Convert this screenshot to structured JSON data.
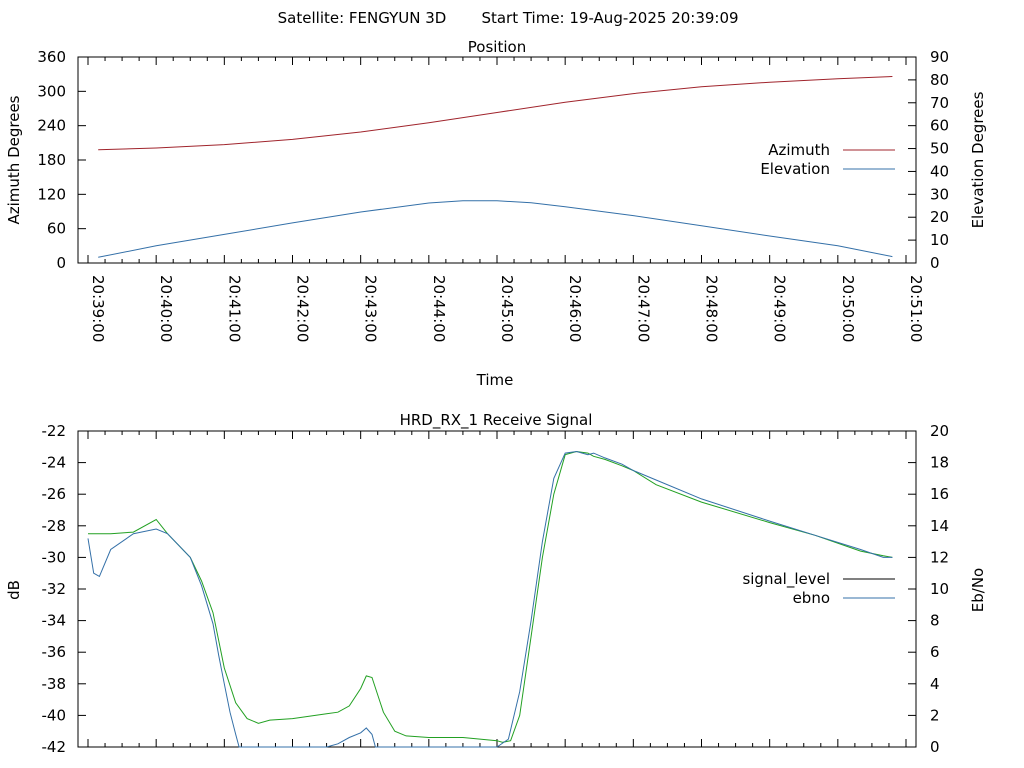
{
  "header": {
    "satellite": "Satellite: FENGYUN 3D",
    "start_time": "Start Time: 19-Aug-2025 20:39:09"
  },
  "chart_data": [
    {
      "type": "line",
      "title": "Position",
      "xlabel": "Time",
      "ylabel": "Azimuth Degrees",
      "y2label": "Elevation Degrees",
      "x_ticks": [
        "20:39:00",
        "20:40:00",
        "20:41:00",
        "20:42:00",
        "20:43:00",
        "20:44:00",
        "20:45:00",
        "20:46:00",
        "20:47:00",
        "20:48:00",
        "20:49:00",
        "20:50:00",
        "20:51:00"
      ],
      "xlim_seconds": [
        0,
        720
      ],
      "ylim": [
        0,
        360
      ],
      "y_ticks": [
        "0",
        "60",
        "120",
        "180",
        "240",
        "300",
        "360"
      ],
      "y2lim": [
        0,
        90
      ],
      "y2_ticks": [
        "0",
        "10",
        "20",
        "30",
        "40",
        "50",
        "60",
        "70",
        "80",
        "90"
      ],
      "legend_position": "right-center",
      "grid": false,
      "series": [
        {
          "name": "Azimuth",
          "axis": "left",
          "color": "#a0242c",
          "x_seconds": [
            9,
            60,
            120,
            180,
            240,
            300,
            360,
            420,
            480,
            540,
            600,
            660,
            708
          ],
          "values": [
            198,
            201,
            207,
            216,
            229,
            245,
            263,
            281,
            296,
            308,
            316,
            322,
            326
          ]
        },
        {
          "name": "Elevation",
          "axis": "right",
          "color": "#3470a8",
          "x_seconds": [
            9,
            60,
            120,
            180,
            240,
            300,
            330,
            360,
            390,
            420,
            480,
            540,
            600,
            660,
            708
          ],
          "values": [
            2.5,
            7.5,
            12.5,
            17.5,
            22.3,
            26.2,
            27.2,
            27.2,
            26.3,
            24.6,
            20.7,
            16.3,
            11.8,
            7.5,
            2.8
          ]
        }
      ]
    },
    {
      "type": "line",
      "title": "HRD_RX_1 Receive Signal",
      "ylabel": "dB",
      "y2label": "Eb/No",
      "xlim_seconds": [
        0,
        720
      ],
      "ylim": [
        -42,
        -22
      ],
      "y_ticks": [
        "-42",
        "-40",
        "-38",
        "-36",
        "-34",
        "-32",
        "-30",
        "-28",
        "-26",
        "-24",
        "-22"
      ],
      "y2lim": [
        0,
        20
      ],
      "y2_ticks": [
        "0",
        "2",
        "4",
        "6",
        "8",
        "10",
        "12",
        "14",
        "16",
        "18",
        "20"
      ],
      "legend_position": "right-center",
      "grid": false,
      "series": [
        {
          "name": "signal_level",
          "axis": "left",
          "legend_color": "#000000",
          "color": "#22a022",
          "x_seconds": [
            0,
            20,
            40,
            60,
            70,
            90,
            100,
            110,
            120,
            130,
            140,
            150,
            160,
            180,
            200,
            210,
            220,
            230,
            240,
            245,
            250,
            260,
            270,
            280,
            300,
            330,
            360,
            365,
            372,
            380,
            390,
            400,
            410,
            420,
            430,
            440,
            445,
            455,
            470,
            480,
            500,
            540,
            600,
            640,
            680,
            700,
            708
          ],
          "values": [
            -28.5,
            -28.5,
            -28.4,
            -27.6,
            -28.5,
            -30.0,
            -31.5,
            -33.5,
            -37.0,
            -39.2,
            -40.2,
            -40.5,
            -40.3,
            -40.2,
            -40.0,
            -39.9,
            -39.8,
            -39.4,
            -38.3,
            -37.5,
            -37.6,
            -39.8,
            -41.0,
            -41.3,
            -41.4,
            -41.4,
            -41.6,
            -41.7,
            -41.6,
            -40.0,
            -35.0,
            -30.0,
            -26.0,
            -23.5,
            -23.3,
            -23.4,
            -23.6,
            -23.8,
            -24.2,
            -24.5,
            -25.4,
            -26.5,
            -27.8,
            -28.6,
            -29.6,
            -29.9,
            -30.0
          ]
        },
        {
          "name": "ebno",
          "axis": "right",
          "legend_color": "#3470a8",
          "color": "#3470a8",
          "x_seconds": [
            0,
            5,
            10,
            20,
            40,
            60,
            70,
            90,
            100,
            110,
            115,
            120,
            125,
            130,
            133,
            140,
            160,
            180,
            210,
            220,
            230,
            240,
            245,
            250,
            253,
            260,
            300,
            360,
            370,
            380,
            390,
            400,
            410,
            420,
            430,
            440,
            445,
            455,
            470,
            480,
            500,
            540,
            600,
            640,
            680,
            700,
            708
          ],
          "values": [
            13.2,
            11.0,
            10.8,
            12.5,
            13.5,
            13.8,
            13.5,
            12.0,
            10.2,
            7.8,
            5.8,
            4.0,
            2.2,
            0.8,
            0.0,
            0.0,
            0.0,
            0.0,
            0.0,
            0.2,
            0.6,
            0.9,
            1.2,
            0.8,
            0.0,
            0.0,
            0.0,
            0.0,
            0.5,
            3.5,
            8.0,
            13.0,
            17.0,
            18.6,
            18.7,
            18.5,
            18.6,
            18.3,
            17.9,
            17.5,
            16.9,
            15.7,
            14.3,
            13.4,
            12.5,
            12.0,
            12.0
          ]
        }
      ]
    }
  ]
}
